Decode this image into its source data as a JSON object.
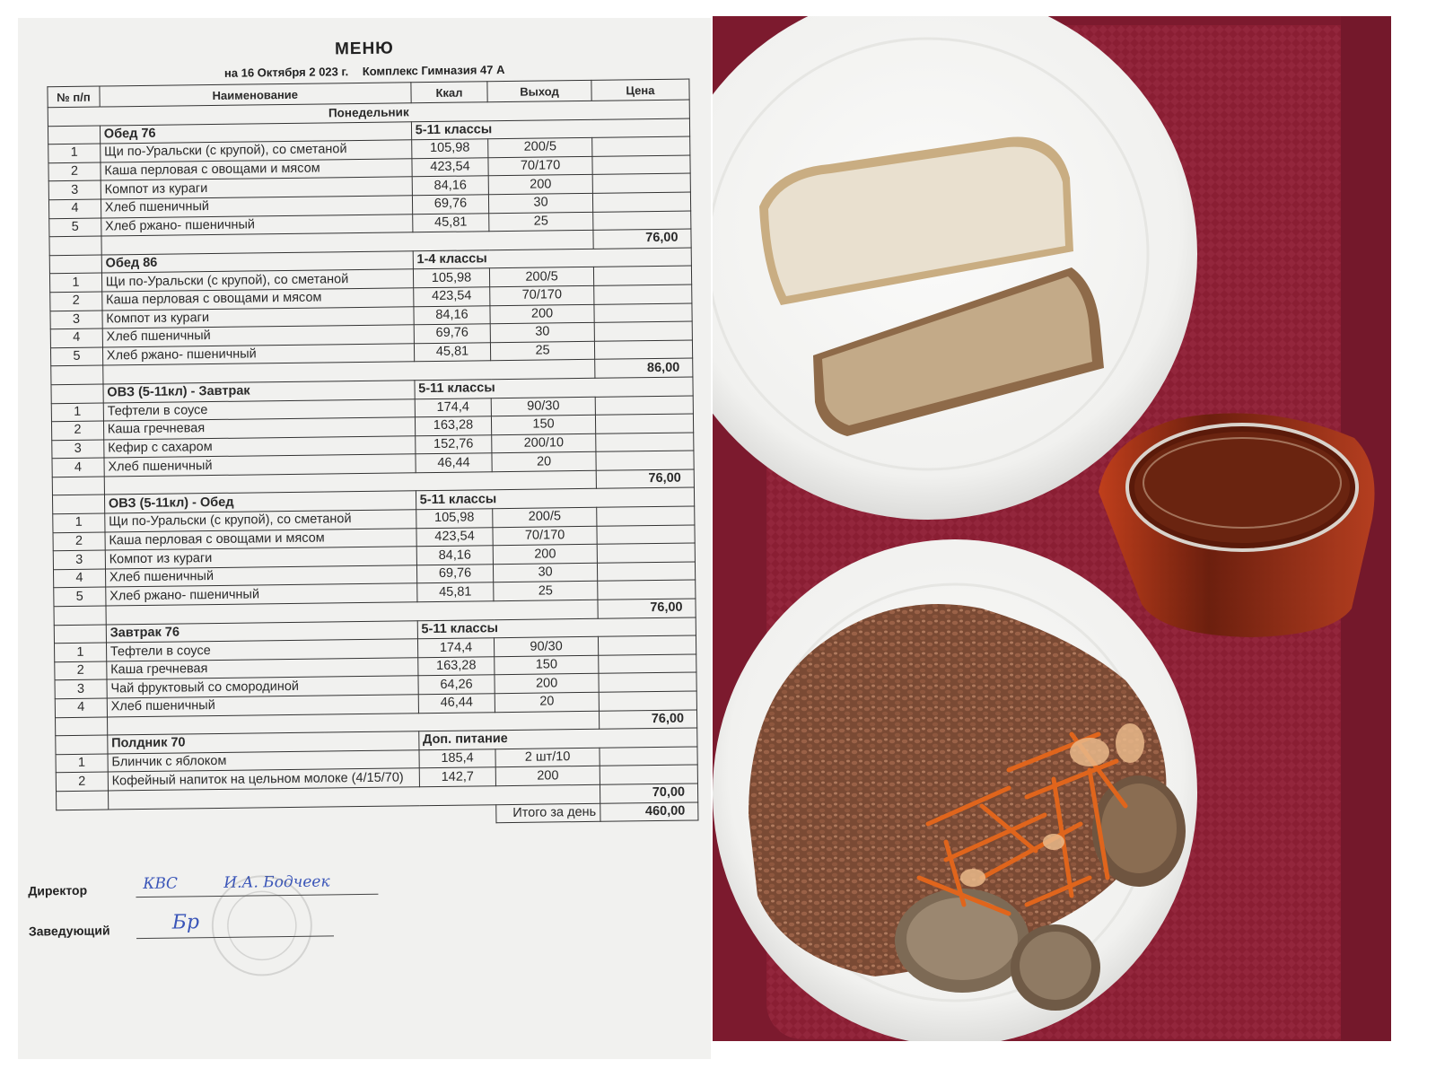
{
  "menu": {
    "title": "МЕНЮ",
    "subtitle_date": "на 16 Октября 2 023 г.",
    "subtitle_complex": "Комплекс  Гимназия 47 А",
    "headers": {
      "no": "№ п/п",
      "name": "Наименование",
      "kcal": "Ккал",
      "output": "Выход",
      "price": "Цена"
    },
    "day": "Понедельник",
    "sections": [
      {
        "title": "Обед 76",
        "group": "5-11 классы",
        "total": "76,00",
        "items": [
          {
            "no": "1",
            "name": "Щи по-Уральски (с крупой), со сметаной",
            "kcal": "105,98",
            "out": "200/5"
          },
          {
            "no": "2",
            "name": "Каша перловая с овощами и мясом",
            "kcal": "423,54",
            "out": "70/170"
          },
          {
            "no": "3",
            "name": "Компот из кураги",
            "kcal": "84,16",
            "out": "200"
          },
          {
            "no": "4",
            "name": "Хлеб пшеничный",
            "kcal": "69,76",
            "out": "30"
          },
          {
            "no": "5",
            "name": "Хлеб ржано- пшеничный",
            "kcal": "45,81",
            "out": "25"
          }
        ]
      },
      {
        "title": "Обед 86",
        "group": "1-4 классы",
        "total": "86,00",
        "items": [
          {
            "no": "1",
            "name": "Щи по-Уральски (с крупой), со сметаной",
            "kcal": "105,98",
            "out": "200/5"
          },
          {
            "no": "2",
            "name": "Каша перловая с овощами и мясом",
            "kcal": "423,54",
            "out": "70/170"
          },
          {
            "no": "3",
            "name": "Компот из кураги",
            "kcal": "84,16",
            "out": "200"
          },
          {
            "no": "4",
            "name": "Хлеб пшеничный",
            "kcal": "69,76",
            "out": "30"
          },
          {
            "no": "5",
            "name": "Хлеб ржано- пшеничный",
            "kcal": "45,81",
            "out": "25"
          }
        ]
      },
      {
        "title": "ОВЗ (5-11кл) - Завтрак",
        "group": "5-11 классы",
        "total": "76,00",
        "items": [
          {
            "no": "1",
            "name": "Тефтели в соусе",
            "kcal": "174,4",
            "out": "90/30"
          },
          {
            "no": "2",
            "name": "Каша гречневая",
            "kcal": "163,28",
            "out": "150"
          },
          {
            "no": "3",
            "name": "Кефир с сахаром",
            "kcal": "152,76",
            "out": "200/10"
          },
          {
            "no": "4",
            "name": "Хлеб пшеничный",
            "kcal": "46,44",
            "out": "20"
          }
        ]
      },
      {
        "title": "ОВЗ (5-11кл) - Обед",
        "group": "5-11 классы",
        "total": "76,00",
        "items": [
          {
            "no": "1",
            "name": "Щи по-Уральски (с крупой), со сметаной",
            "kcal": "105,98",
            "out": "200/5"
          },
          {
            "no": "2",
            "name": "Каша перловая с овощами и мясом",
            "kcal": "423,54",
            "out": "70/170"
          },
          {
            "no": "3",
            "name": "Компот из кураги",
            "kcal": "84,16",
            "out": "200"
          },
          {
            "no": "4",
            "name": "Хлеб пшеничный",
            "kcal": "69,76",
            "out": "30"
          },
          {
            "no": "5",
            "name": "Хлеб ржано- пшеничный",
            "kcal": "45,81",
            "out": "25"
          }
        ]
      },
      {
        "title": "Завтрак 76",
        "group": "5-11 классы",
        "total": "76,00",
        "items": [
          {
            "no": "1",
            "name": "Тефтели в соусе",
            "kcal": "174,4",
            "out": "90/30"
          },
          {
            "no": "2",
            "name": "Каша гречневая",
            "kcal": "163,28",
            "out": "150"
          },
          {
            "no": "3",
            "name": "Чай фруктовый со смородиной",
            "kcal": "64,26",
            "out": "200"
          },
          {
            "no": "4",
            "name": "Хлеб пшеничный",
            "kcal": "46,44",
            "out": "20"
          }
        ]
      },
      {
        "title": "Полдник 70",
        "group": "Доп. питание",
        "total": "70,00",
        "items": [
          {
            "no": "1",
            "name": "Блинчик с яблоком",
            "kcal": "185,4",
            "out": "2 шт/10"
          },
          {
            "no": "2",
            "name": "Кофейный напиток на цельном молоке (4/15/70)",
            "kcal": "142,7",
            "out": "200"
          }
        ]
      }
    ],
    "day_total_label": "Итого за день",
    "day_total": "460,00",
    "director_label": "Директор",
    "director_signature": "И.А. Бодчеек",
    "manager_label": "Заведующий"
  },
  "photo": {
    "tray_color": "#8c1f35",
    "plate_color": "#f6f6f4",
    "drink_color": "#7a2a10",
    "items": [
      "bread-slices",
      "buckwheat-with-meatballs",
      "glass-of-tea"
    ]
  }
}
